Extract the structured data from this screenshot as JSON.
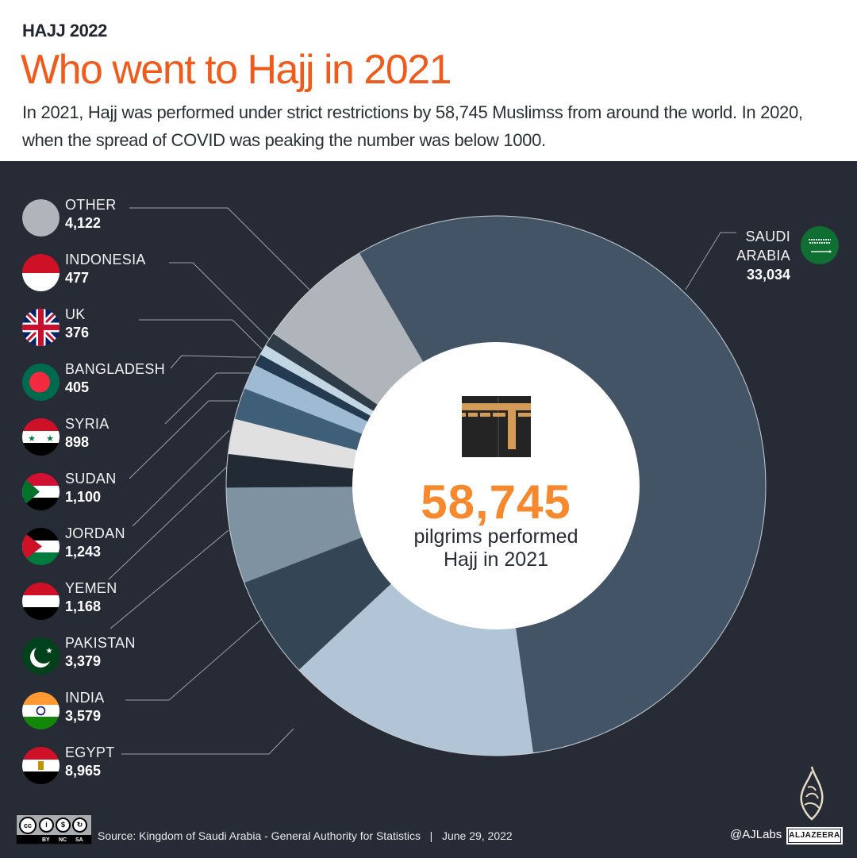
{
  "header": {
    "kicker": "HAJJ 2022",
    "title": "Who went to Hajj in 2021",
    "subtitle": "In 2021, Hajj was performed under strict restrictions by 58,745 Muslimss from around the world. In 2020, when the spread of COVID was peaking the number was below 1000."
  },
  "center": {
    "icon": "kaaba-icon",
    "total": "58,745",
    "line1": "pilgrims performed",
    "line2": "Hajj in 2021"
  },
  "legend": [
    {
      "name": "OTHER",
      "value": "4,122",
      "flag": "other"
    },
    {
      "name": "INDONESIA",
      "value": "477",
      "flag": "indonesia"
    },
    {
      "name": "UK",
      "value": "376",
      "flag": "uk"
    },
    {
      "name": "BANGLADESH",
      "value": "405",
      "flag": "bangladesh"
    },
    {
      "name": "SYRIA",
      "value": "898",
      "flag": "syria"
    },
    {
      "name": "SUDAN",
      "value": "1,100",
      "flag": "sudan"
    },
    {
      "name": "JORDAN",
      "value": "1,243",
      "flag": "jordan"
    },
    {
      "name": "YEMEN",
      "value": "1,168",
      "flag": "yemen"
    },
    {
      "name": "PAKISTAN",
      "value": "3,379",
      "flag": "pakistan"
    },
    {
      "name": "INDIA",
      "value": "3,579",
      "flag": "india"
    },
    {
      "name": "EGYPT",
      "value": "8,965",
      "flag": "egypt"
    }
  ],
  "saudi": {
    "name_line1": "SAUDI",
    "name_line2": "ARABIA",
    "value": "33,034",
    "flag": "saudi-arabia"
  },
  "footer": {
    "license": "CC BY NC SA",
    "license_labels": [
      "BY",
      "NC",
      "SA"
    ],
    "source": "Source: Kingdom of Saudi Arabia - General Authority for Statistics   |   June 29, 2022",
    "handle": "@AJLabs",
    "brand": "ALJAZEERA"
  },
  "chart_data": {
    "type": "pie",
    "subtype": "donut",
    "title": "Who went to Hajj in 2021",
    "total": 58745,
    "start_angle_deg": -30.4,
    "direction": "clockwise",
    "categories": [
      "Saudi Arabia",
      "Egypt",
      "India",
      "Pakistan",
      "Yemen",
      "Jordan",
      "Sudan",
      "Syria",
      "Bangladesh",
      "UK",
      "Indonesia",
      "Other"
    ],
    "values": [
      33034,
      8965,
      3579,
      3379,
      1168,
      1243,
      1100,
      898,
      405,
      376,
      477,
      4122
    ],
    "colors": [
      "#435466",
      "#b1c5d7",
      "#344655",
      "#7e92a2",
      "#222b35",
      "#e0e0e0",
      "#3f5e78",
      "#9fbbd3",
      "#233a50",
      "#c3d6e4",
      "#2e3c48",
      "#b0b5bb"
    ],
    "center_label": "58,745 pilgrims performed Hajj in 2021",
    "legend_position": "left",
    "grid": false
  },
  "colors": {
    "accent": "#f05a1a",
    "total_number": "#f6892d",
    "panel_bg": "#262b36"
  }
}
